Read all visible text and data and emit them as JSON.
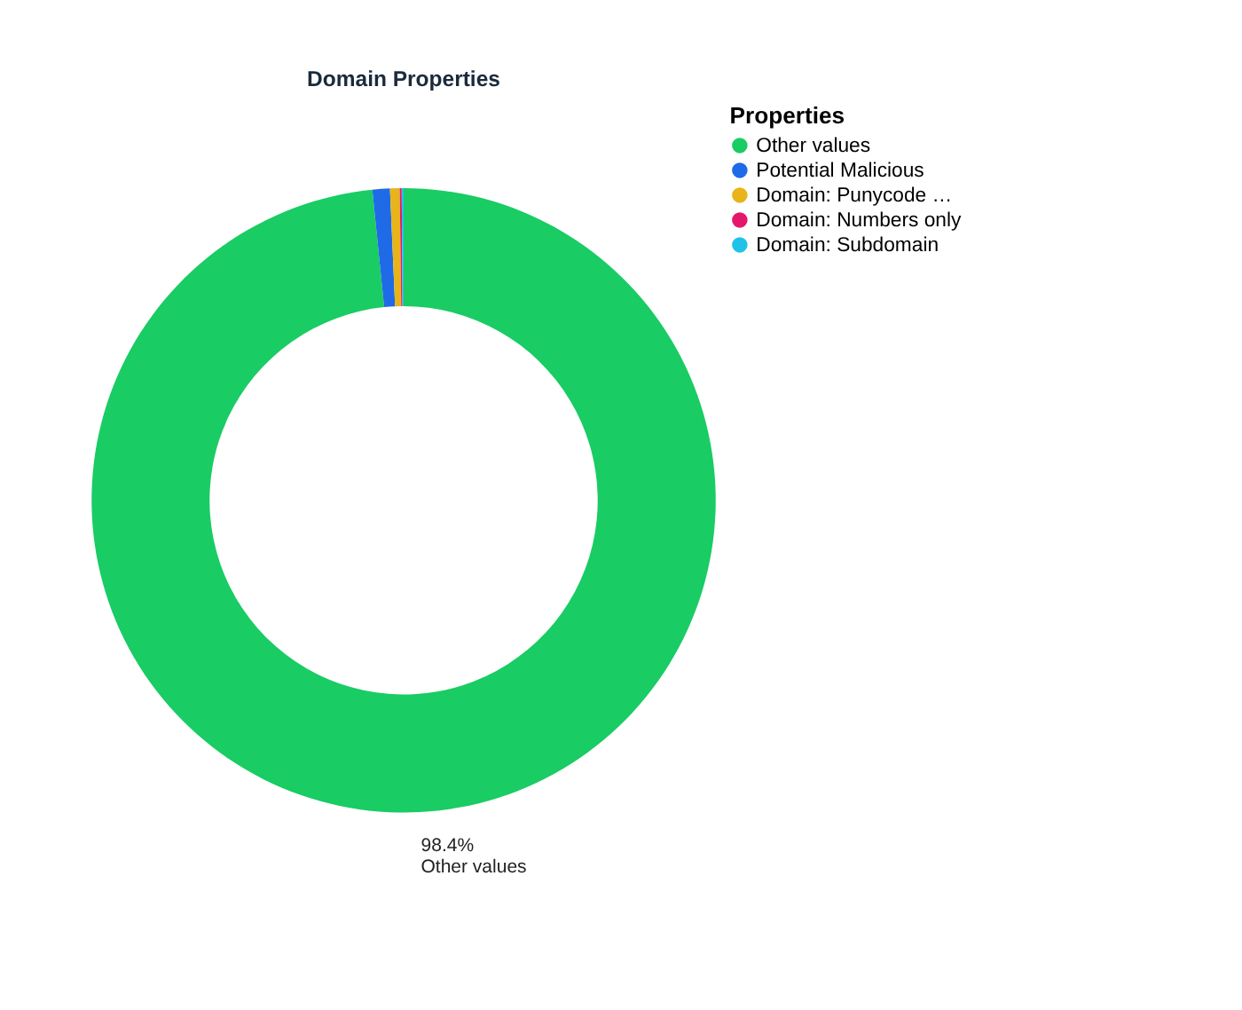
{
  "chart_data": {
    "type": "donut",
    "title": "Domain Properties",
    "legend_title": "Properties",
    "legend": "top right",
    "categories": [
      "Other values",
      "Potential Malicious",
      "Domain: Punycode …",
      "Domain: Numbers only",
      "Domain: Subdomain"
    ],
    "values": [
      98.4,
      0.9,
      0.5,
      0.1,
      0.1
    ],
    "colors": [
      "#19cc64",
      "#1f6ae6",
      "#e8b41a",
      "#e5176b",
      "#1fc3e8"
    ],
    "value_labels": [
      "98.4%",
      null,
      null,
      null,
      null
    ]
  }
}
